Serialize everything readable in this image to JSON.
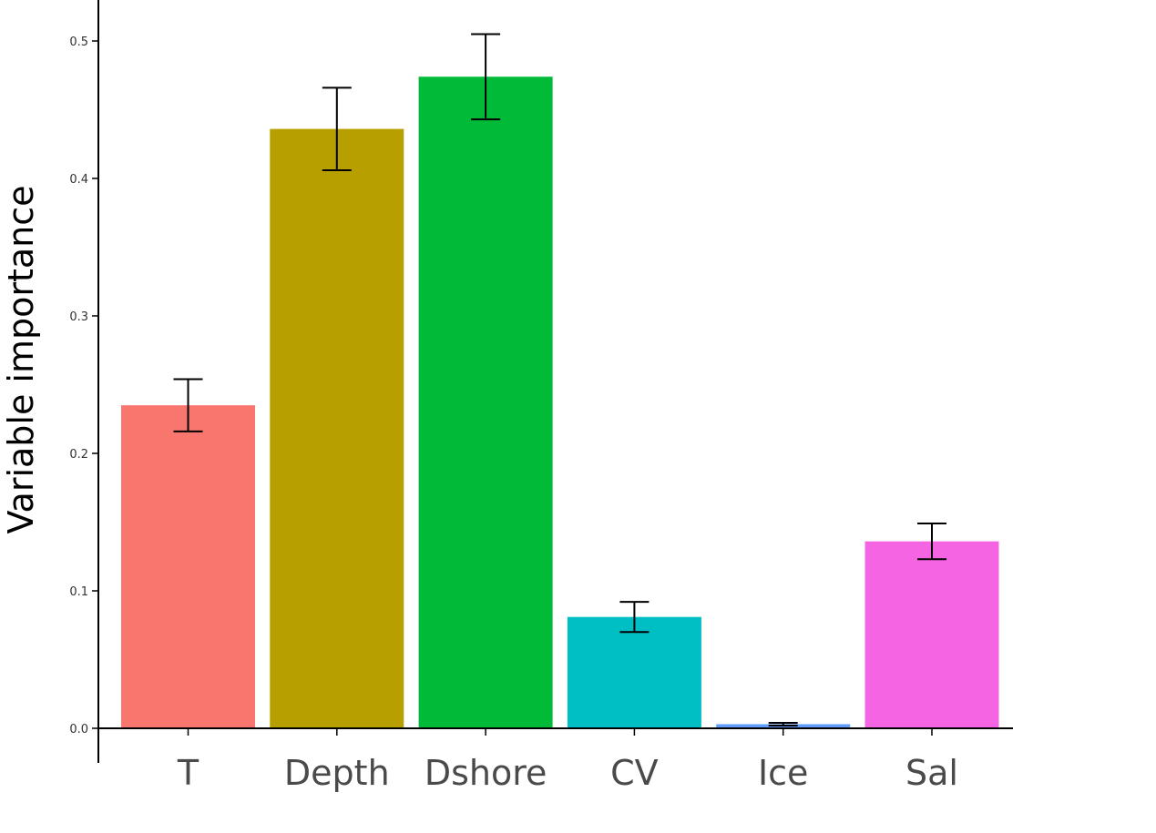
{
  "chart_data": {
    "type": "bar",
    "title": "",
    "xlabel": "",
    "ylabel": "Variable importance",
    "ylim": [
      0,
      0.53
    ],
    "yticks": [
      "0.0",
      "0.1",
      "0.2",
      "0.3",
      "0.4",
      "0.5"
    ],
    "grid": false,
    "legend": "none",
    "categories": [
      "T",
      "Depth",
      "Dshore",
      "CV",
      "Ice",
      "Sal"
    ],
    "values": [
      0.235,
      0.436,
      0.474,
      0.081,
      0.003,
      0.136
    ],
    "error_low": [
      0.216,
      0.406,
      0.443,
      0.07,
      0.002,
      0.123
    ],
    "error_high": [
      0.254,
      0.466,
      0.505,
      0.092,
      0.004,
      0.149
    ],
    "colors": [
      "#F8766D",
      "#B79F00",
      "#00BA38",
      "#00BFC4",
      "#619CFF",
      "#F564E3"
    ]
  }
}
